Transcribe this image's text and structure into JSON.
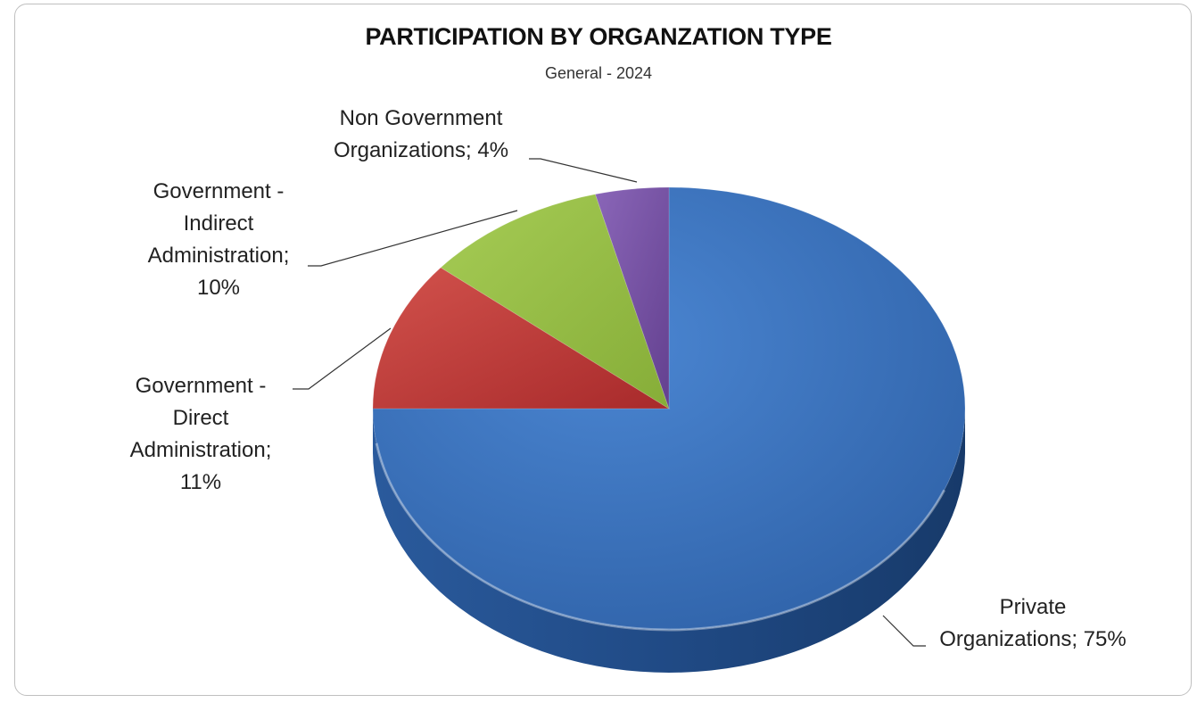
{
  "chart_data": {
    "type": "pie",
    "title": "PARTICIPATION BY ORGANZATION TYPE",
    "subtitle": "General - 2024",
    "slices": [
      {
        "label_lines": [
          "Private",
          "Organizations; 75%"
        ],
        "value": 75,
        "color": "#3a74c2"
      },
      {
        "label_lines": [
          "Government -",
          "Direct",
          "Administration;",
          "11%"
        ],
        "value": 11,
        "color": "#c0393a"
      },
      {
        "label_lines": [
          "Government -",
          "Indirect",
          "Administration;",
          "10%"
        ],
        "value": 10,
        "color": "#96be45"
      },
      {
        "label_lines": [
          "Non Government",
          "Organizations; 4%"
        ],
        "value": 4,
        "color": "#7a56a8"
      }
    ]
  }
}
